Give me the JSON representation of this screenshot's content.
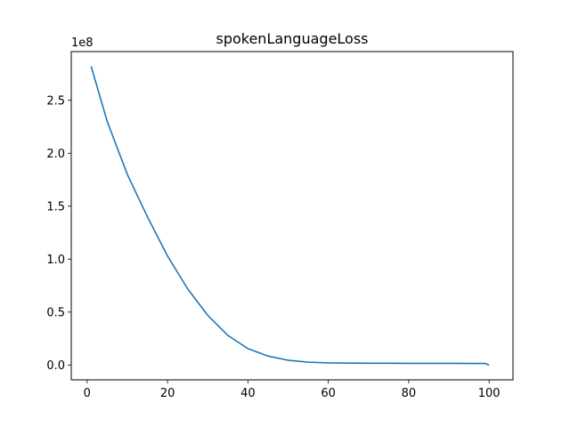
{
  "chart_data": {
    "type": "line",
    "title": "spokenLanguageLoss",
    "xlabel": "",
    "ylabel": "",
    "y_offset_label": "1e8",
    "xlim": [
      -3.95,
      105.95
    ],
    "ylim": [
      -0.14,
      2.96
    ],
    "x_ticks": [
      0,
      20,
      40,
      60,
      80,
      100
    ],
    "x_tick_labels": [
      "0",
      "20",
      "40",
      "60",
      "80",
      "100"
    ],
    "y_ticks": [
      0.0,
      0.5,
      1.0,
      1.5,
      2.0,
      2.5
    ],
    "y_tick_labels": [
      "0.0",
      "0.5",
      "1.0",
      "1.5",
      "2.0",
      "2.5"
    ],
    "grid": false,
    "series": [
      {
        "color": "#1f77b4",
        "x": [
          1,
          5,
          10,
          15,
          20,
          25,
          30,
          35,
          40,
          45,
          50,
          55,
          60,
          65,
          70,
          75,
          80,
          85,
          90,
          95,
          99,
          100
        ],
        "y": [
          2.82,
          2.3,
          1.8,
          1.4,
          1.03,
          0.72,
          0.47,
          0.28,
          0.155,
          0.085,
          0.045,
          0.027,
          0.02,
          0.018,
          0.017,
          0.017,
          0.016,
          0.016,
          0.016,
          0.015,
          0.015,
          0.0
        ]
      }
    ]
  }
}
